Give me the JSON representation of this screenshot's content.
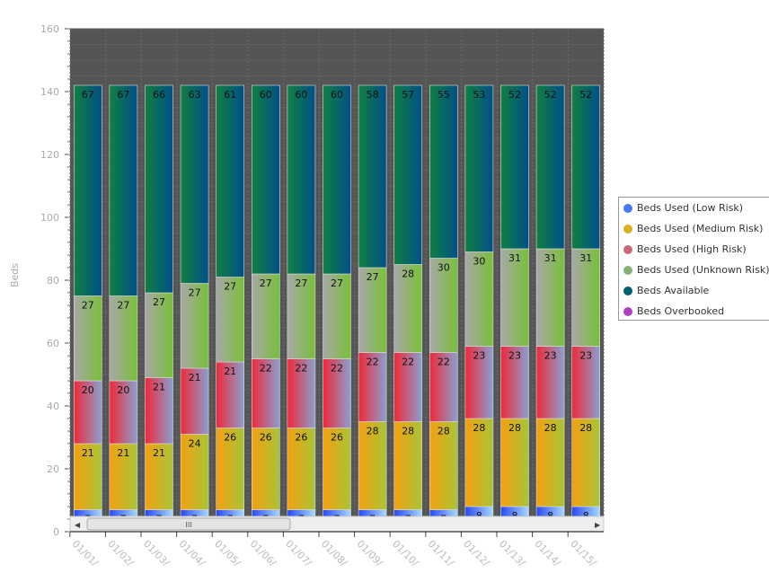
{
  "chart_data": {
    "type": "bar",
    "stacked": true,
    "ylabel": "Beds",
    "xlabel": "",
    "ylim": [
      0,
      160
    ],
    "yticks": [
      0,
      20,
      40,
      60,
      80,
      100,
      120,
      140,
      160
    ],
    "categories": [
      "01/01/",
      "01/02/",
      "01/03/",
      "01/04/",
      "01/05/",
      "01/06/",
      "01/07/",
      "01/08/",
      "01/09/",
      "01/10/",
      "01/11/",
      "01/12/",
      "01/13/",
      "01/14/",
      "01/15/"
    ],
    "series": [
      {
        "name": "Beds Used (Low Risk)",
        "color": "#4a78f0",
        "values": [
          7,
          7,
          7,
          7,
          7,
          7,
          7,
          7,
          7,
          7,
          7,
          8,
          8,
          8,
          8
        ]
      },
      {
        "name": "Beds Used (Medium Risk)",
        "color": "#d8b020",
        "values": [
          21,
          21,
          21,
          24,
          26,
          26,
          26,
          26,
          28,
          28,
          28,
          28,
          28,
          28,
          28
        ]
      },
      {
        "name": "Beds Used (High Risk)",
        "color": "#c86878",
        "values": [
          20,
          20,
          21,
          21,
          21,
          22,
          22,
          22,
          22,
          22,
          22,
          23,
          23,
          23,
          23
        ]
      },
      {
        "name": "Beds Used (Unknown Risk)",
        "color": "#88b078",
        "values": [
          27,
          27,
          27,
          27,
          27,
          27,
          27,
          27,
          27,
          28,
          30,
          30,
          31,
          31,
          31
        ]
      },
      {
        "name": "Beds Available",
        "color": "#006070",
        "values": [
          67,
          67,
          66,
          63,
          61,
          60,
          60,
          60,
          58,
          57,
          55,
          53,
          52,
          52,
          52
        ]
      },
      {
        "name": "Beds Overbooked",
        "color": "#b040c0",
        "values": [
          0,
          0,
          0,
          0,
          0,
          0,
          0,
          0,
          0,
          0,
          0,
          0,
          0,
          0,
          0
        ]
      }
    ],
    "legend_position": "right",
    "grid": true,
    "plot_background": "#555555"
  },
  "scrollbar": {
    "thumb_label": "III"
  }
}
